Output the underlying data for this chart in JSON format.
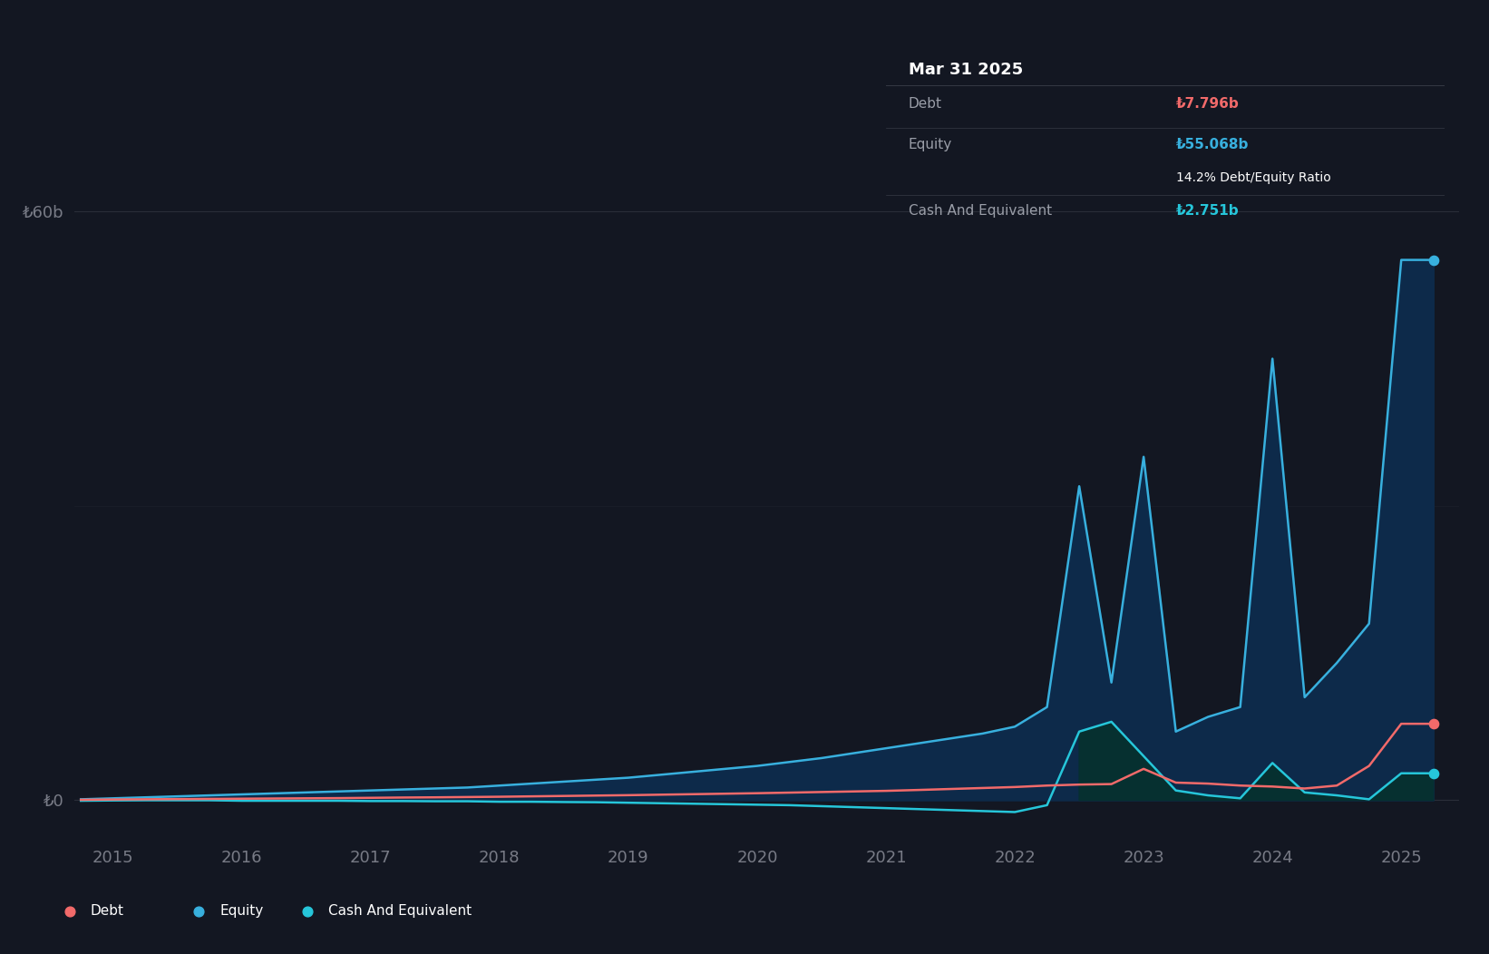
{
  "background_color": "#131722",
  "grid_color": "#2a2e39",
  "axis_label_color": "#787b86",
  "debt_color": "#f26a6a",
  "equity_color": "#38b0de",
  "cash_color": "#26c6da",
  "equity_fill_color": "#0d2a4a",
  "cash_fill_color": "#063030",
  "tooltip_bg": "#000000",
  "tooltip_border": "#363a45",
  "tooltip_title": "Mar 31 2025",
  "tooltip_debt_lbl": "Debt",
  "tooltip_debt_val": "₺7.796b",
  "tooltip_equity_lbl": "Equity",
  "tooltip_equity_val": "₺55.068b",
  "tooltip_ratio": "14.2% Debt/Equity Ratio",
  "tooltip_cash_lbl": "Cash And Equivalent",
  "tooltip_cash_val": "₺2.751b",
  "legend_bg": "#1e222d",
  "ytick_labels": [
    "₺0",
    "₺60b"
  ],
  "xlabel_years": [
    "2015",
    "2016",
    "2017",
    "2018",
    "2019",
    "2020",
    "2021",
    "2022",
    "2023",
    "2024",
    "2025"
  ],
  "xlim": [
    2014.7,
    2025.45
  ],
  "ylim": [
    -4000000000.0,
    66000000000.0
  ],
  "times": [
    2014.75,
    2015.0,
    2015.25,
    2015.5,
    2015.75,
    2016.0,
    2016.25,
    2016.5,
    2016.75,
    2017.0,
    2017.25,
    2017.5,
    2017.75,
    2018.0,
    2018.25,
    2018.5,
    2018.75,
    2019.0,
    2019.25,
    2019.5,
    2019.75,
    2020.0,
    2020.25,
    2020.5,
    2020.75,
    2021.0,
    2021.25,
    2021.5,
    2021.75,
    2022.0,
    2022.25,
    2022.5,
    2022.75,
    2023.0,
    2023.25,
    2023.5,
    2023.75,
    2024.0,
    2024.25,
    2024.5,
    2024.75,
    2025.0,
    2025.25
  ],
  "equity": [
    100000000.0,
    200000000.0,
    300000000.0,
    400000000.0,
    500000000.0,
    600000000.0,
    700000000.0,
    800000000.0,
    900000000.0,
    1000000000.0,
    1100000000.0,
    1200000000.0,
    1300000000.0,
    1500000000.0,
    1700000000.0,
    1900000000.0,
    2100000000.0,
    2300000000.0,
    2600000000.0,
    2900000000.0,
    3200000000.0,
    3500000000.0,
    3900000000.0,
    4300000000.0,
    4800000000.0,
    5300000000.0,
    5800000000.0,
    6300000000.0,
    6800000000.0,
    7500000000.0,
    9500000000.0,
    32000000000.0,
    12000000000.0,
    35000000000.0,
    7000000000.0,
    8500000000.0,
    9500000000.0,
    45000000000.0,
    10500000000.0,
    14000000000.0,
    18000000000.0,
    55068000000.0,
    55068000000.0
  ],
  "debt": [
    50000000.0,
    80000000.0,
    100000000.0,
    120000000.0,
    140000000.0,
    160000000.0,
    180000000.0,
    200000000.0,
    220000000.0,
    250000000.0,
    280000000.0,
    300000000.0,
    330000000.0,
    360000000.0,
    400000000.0,
    440000000.0,
    480000000.0,
    520000000.0,
    570000000.0,
    620000000.0,
    670000000.0,
    720000000.0,
    780000000.0,
    840000000.0,
    900000000.0,
    960000000.0,
    1050000000.0,
    1150000000.0,
    1250000000.0,
    1350000000.0,
    1500000000.0,
    1600000000.0,
    1650000000.0,
    3200000000.0,
    1800000000.0,
    1700000000.0,
    1500000000.0,
    1400000000.0,
    1200000000.0,
    1500000000.0,
    3500000000.0,
    7796000000.0,
    7796000000.0
  ],
  "cash": [
    -50000000.0,
    -20000000.0,
    0.0,
    0.0,
    0.0,
    -50000000.0,
    -50000000.0,
    -50000000.0,
    -50000000.0,
    -80000000.0,
    -80000000.0,
    -100000000.0,
    -100000000.0,
    -150000000.0,
    -150000000.0,
    -180000000.0,
    -200000000.0,
    -250000000.0,
    -300000000.0,
    -350000000.0,
    -400000000.0,
    -450000000.0,
    -500000000.0,
    -600000000.0,
    -700000000.0,
    -800000000.0,
    -900000000.0,
    -1000000000.0,
    -1100000000.0,
    -1200000000.0,
    -500000000.0,
    7000000000.0,
    8000000000.0,
    4500000000.0,
    1000000000.0,
    500000000.0,
    200000000.0,
    3800000000.0,
    800000000.0,
    500000000.0,
    100000000.0,
    2751000000.0,
    2751000000.0
  ]
}
